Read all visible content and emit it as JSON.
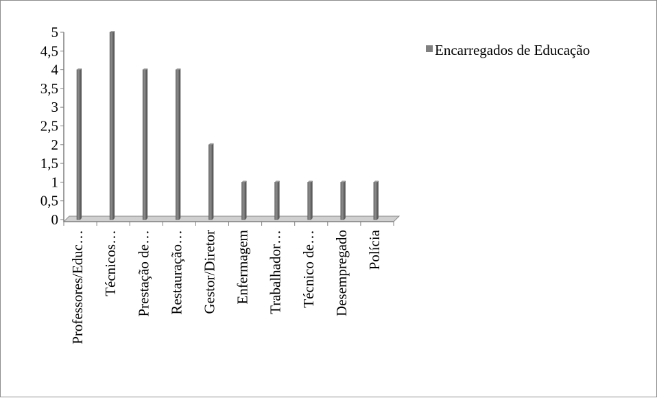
{
  "chart_data": {
    "type": "bar",
    "categories": [
      "Professores/Educ…",
      "Técnicos…",
      "Prestação de…",
      "Restauração…",
      "Gestor/Diretor",
      "Enfermagem",
      "Trabalhador…",
      "Técnico de…",
      "Desempregado",
      "Polícia"
    ],
    "series": [
      {
        "name": "Encarregados de Educação",
        "values": [
          4,
          5,
          4,
          4,
          2,
          1,
          1,
          1,
          1,
          1
        ],
        "color": "#808080"
      }
    ],
    "y_tick_labels": [
      "0",
      "0,5",
      "1",
      "1,5",
      "2",
      "2,5",
      "3",
      "3,5",
      "4",
      "4,5",
      "5"
    ],
    "ylim": [
      0,
      5
    ],
    "grid": false,
    "legend_position": "top-right",
    "title": "",
    "xlabel": "",
    "ylabel": ""
  }
}
